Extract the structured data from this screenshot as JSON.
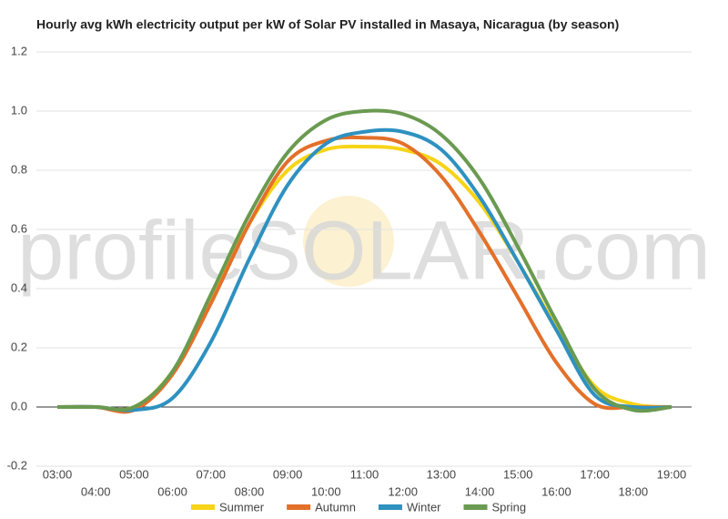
{
  "chart_data": {
    "type": "line",
    "title": "Hourly avg kWh electricity output per kW of Solar PV installed in Masaya, Nicaragua (by season)",
    "watermark": "profileSOLAR.com",
    "categories": [
      "03:00",
      "04:00",
      "05:00",
      "06:00",
      "07:00",
      "08:00",
      "09:00",
      "10:00",
      "11:00",
      "12:00",
      "13:00",
      "14:00",
      "15:00",
      "16:00",
      "17:00",
      "18:00",
      "19:00"
    ],
    "series": [
      {
        "name": "Summer",
        "color": "#f7d417",
        "values": [
          0,
          0,
          0,
          0.12,
          0.36,
          0.62,
          0.8,
          0.87,
          0.88,
          0.87,
          0.82,
          0.69,
          0.49,
          0.27,
          0.07,
          0.01,
          0
        ]
      },
      {
        "name": "Autumn",
        "color": "#e3702a",
        "values": [
          0,
          0,
          -0.01,
          0.11,
          0.35,
          0.62,
          0.83,
          0.9,
          0.91,
          0.89,
          0.78,
          0.59,
          0.37,
          0.15,
          0.01,
          0,
          0
        ]
      },
      {
        "name": "Winter",
        "color": "#2e91c0",
        "values": [
          0,
          0,
          -0.01,
          0.03,
          0.22,
          0.5,
          0.75,
          0.89,
          0.93,
          0.93,
          0.87,
          0.71,
          0.49,
          0.26,
          0.04,
          0,
          0
        ]
      },
      {
        "name": "Spring",
        "color": "#6a9a50",
        "values": [
          0,
          0,
          0,
          0.12,
          0.38,
          0.65,
          0.86,
          0.97,
          1.0,
          0.99,
          0.92,
          0.77,
          0.54,
          0.29,
          0.06,
          -0.01,
          0
        ]
      }
    ],
    "ylim": [
      -0.2,
      1.2
    ],
    "yticks": [
      -0.2,
      {
        "value": 0,
        "label": "0.0"
      },
      0.2,
      0.4,
      0.6,
      0.8,
      {
        "value": 1,
        "label": "1.0"
      },
      1.2
    ],
    "grid": true,
    "legend": "bottom"
  }
}
